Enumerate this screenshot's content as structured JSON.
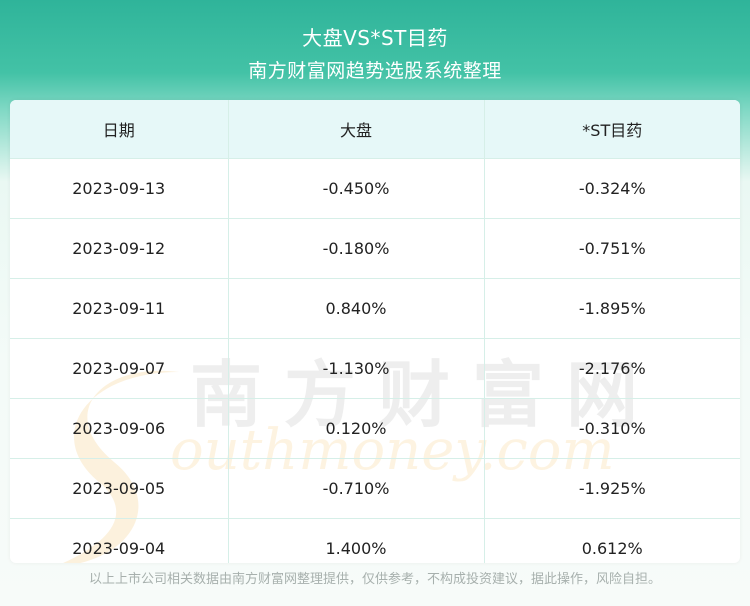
{
  "header": {
    "title": "大盘VS*ST目药",
    "subtitle": "南方财富网趋势选股系统整理"
  },
  "table": {
    "columns": [
      "日期",
      "大盘",
      "*ST目药"
    ],
    "rows": [
      [
        "2023-09-13",
        "-0.450%",
        "-0.324%"
      ],
      [
        "2023-09-12",
        "-0.180%",
        "-0.751%"
      ],
      [
        "2023-09-11",
        "0.840%",
        "-1.895%"
      ],
      [
        "2023-09-07",
        "-1.130%",
        "-2.176%"
      ],
      [
        "2023-09-06",
        "0.120%",
        "-0.310%"
      ],
      [
        "2023-09-05",
        "-0.710%",
        "-1.925%"
      ],
      [
        "2023-09-04",
        "1.400%",
        "0.612%"
      ]
    ]
  },
  "watermark": {
    "cn": "南方财富网",
    "en": "outhmoney.com"
  },
  "footer": {
    "disclaimer": "以上上市公司相关数据由南方财富网整理提供，仅供参考，不构成投资建议，据此操作，风险自担。"
  }
}
